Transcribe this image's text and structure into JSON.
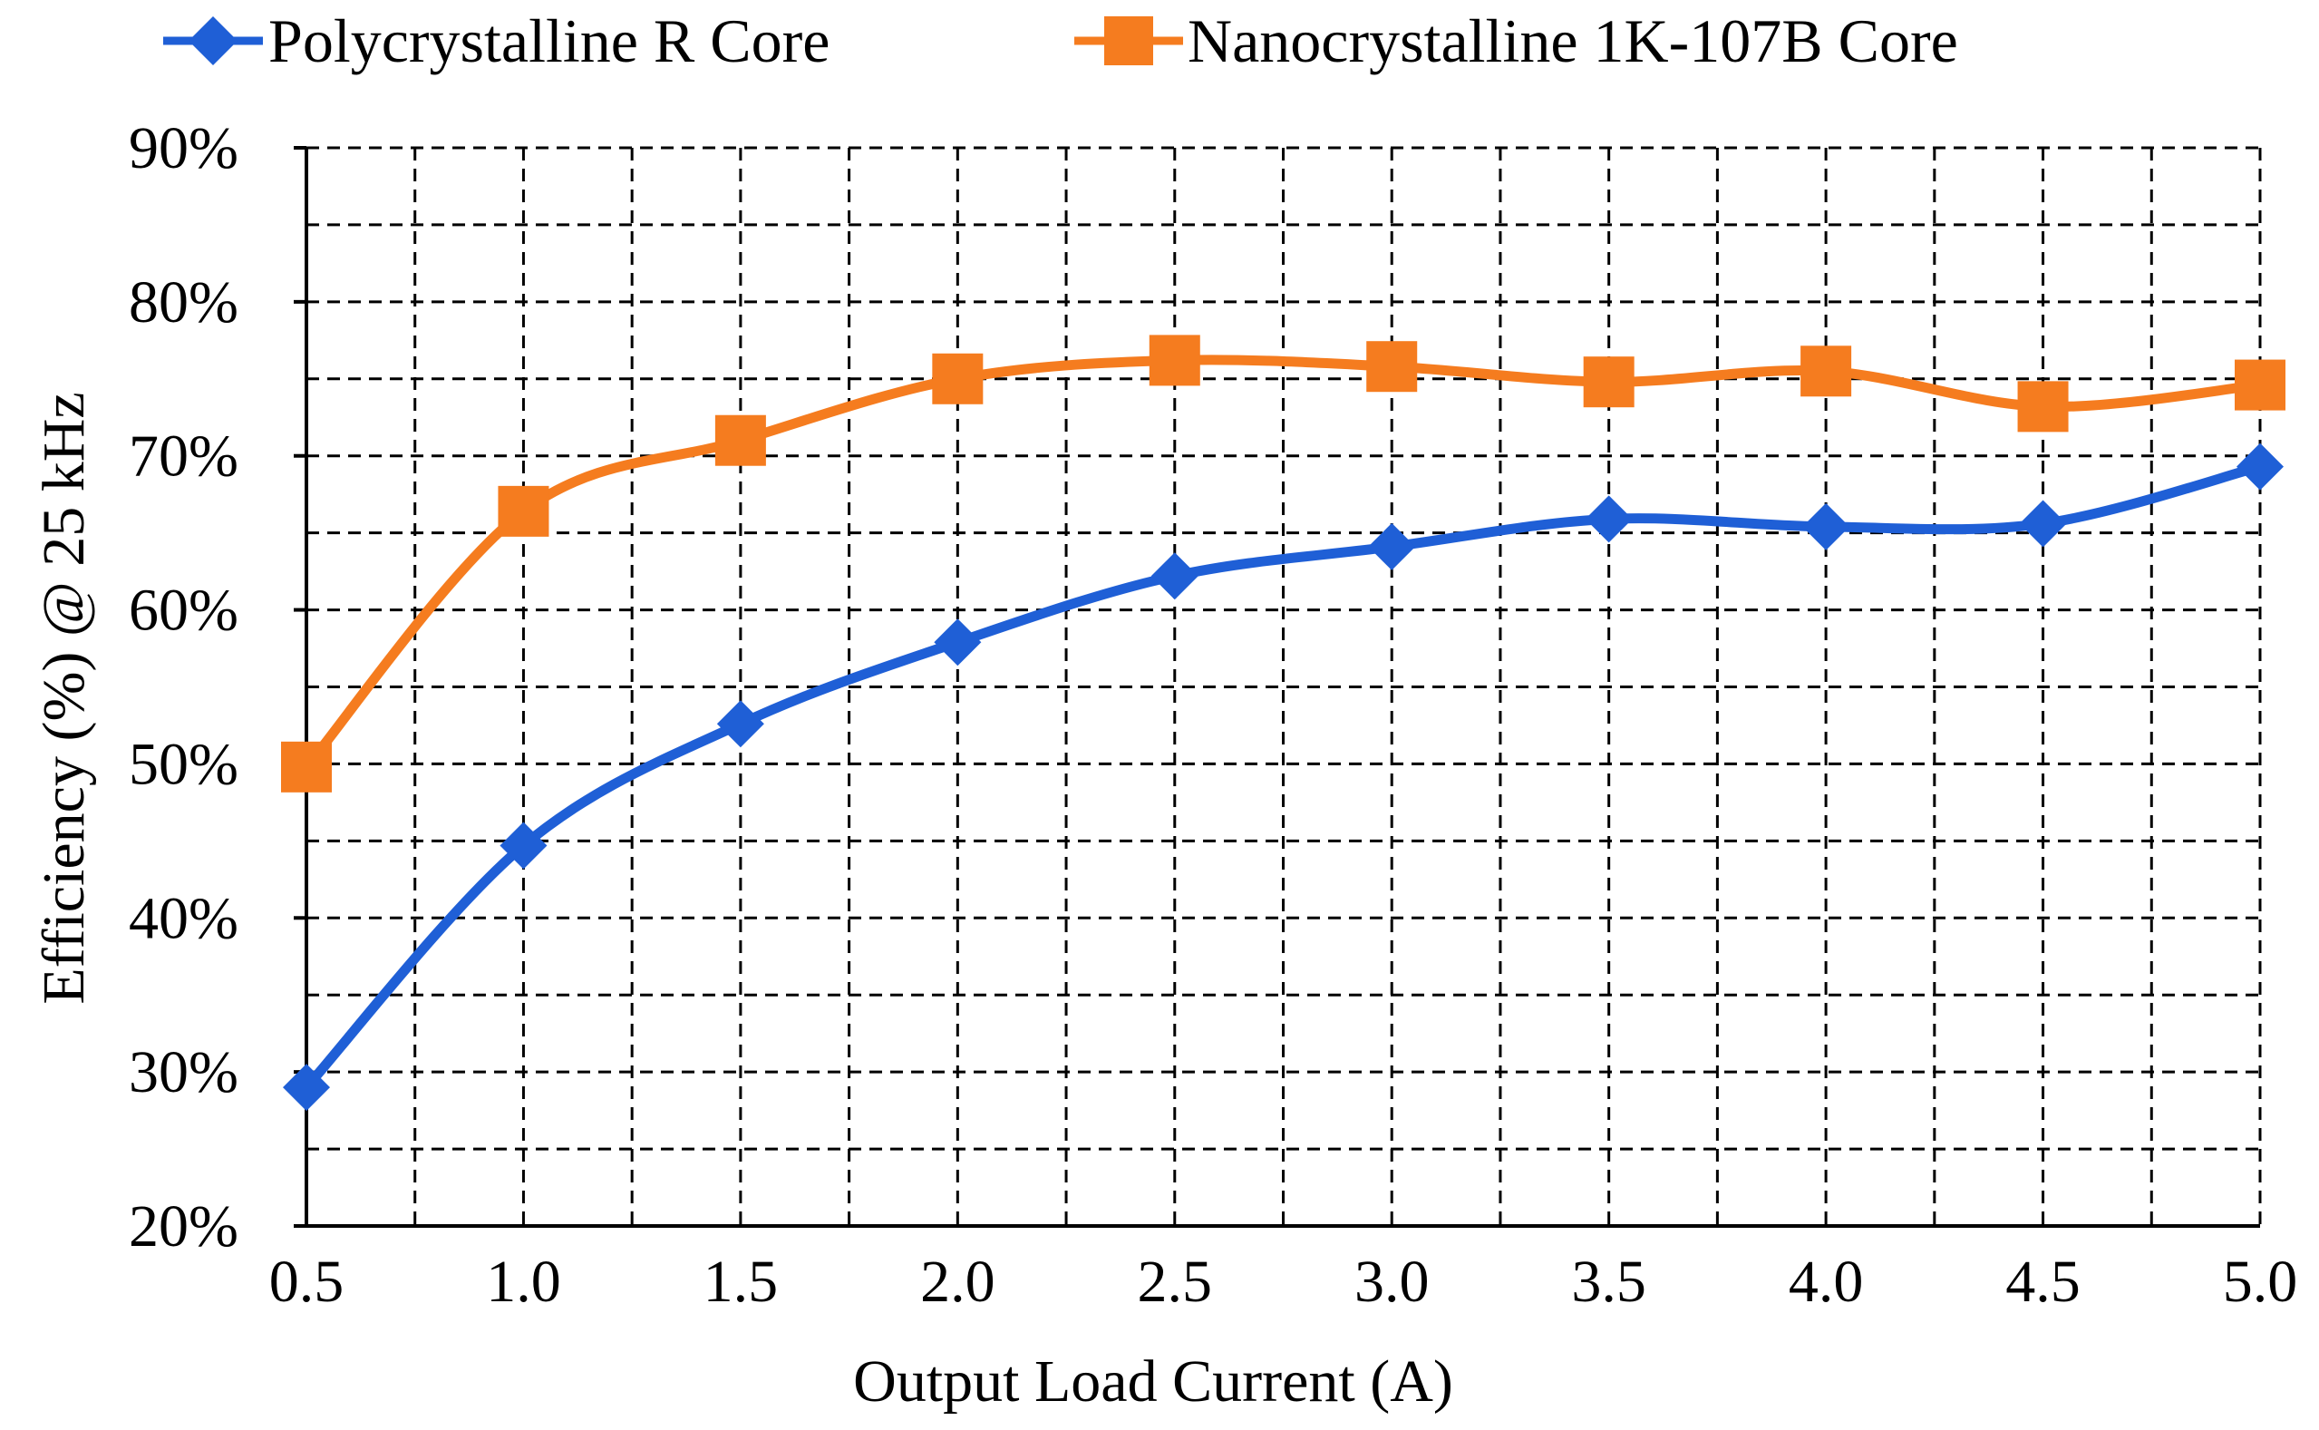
{
  "chart_data": {
    "type": "line",
    "title": "",
    "xlabel": "Output Load Current (A)",
    "ylabel": "Efficiency (%) @ 25 kHz",
    "x": [
      0.5,
      1.0,
      1.5,
      2.0,
      2.5,
      3.0,
      3.5,
      4.0,
      4.5,
      5.0
    ],
    "x_tick_labels": [
      "0.5",
      "1.0",
      "1.5",
      "2.0",
      "2.5",
      "3.0",
      "3.5",
      "4.0",
      "4.5",
      "5.0"
    ],
    "xlim": [
      0.5,
      5.0
    ],
    "ylim": [
      20,
      90
    ],
    "y_ticks": [
      20,
      30,
      40,
      50,
      60,
      70,
      80,
      90
    ],
    "y_tick_labels": [
      "20%",
      "30%",
      "40%",
      "50%",
      "60%",
      "70%",
      "80%",
      "90%"
    ],
    "grid": true,
    "legend_position": "top",
    "series": [
      {
        "name": "Polycrystalline R Core",
        "color": "#1f5fd6",
        "marker": "diamond",
        "values": [
          29.0,
          44.7,
          52.6,
          57.9,
          62.2,
          64.1,
          65.9,
          65.4,
          65.6,
          69.3
        ]
      },
      {
        "name": "Nanocrystalline 1K-107B Core",
        "color": "#f57c1f",
        "marker": "square",
        "values": [
          49.8,
          66.4,
          71.0,
          75.0,
          76.2,
          75.8,
          74.8,
          75.5,
          73.2,
          74.6
        ]
      }
    ]
  }
}
